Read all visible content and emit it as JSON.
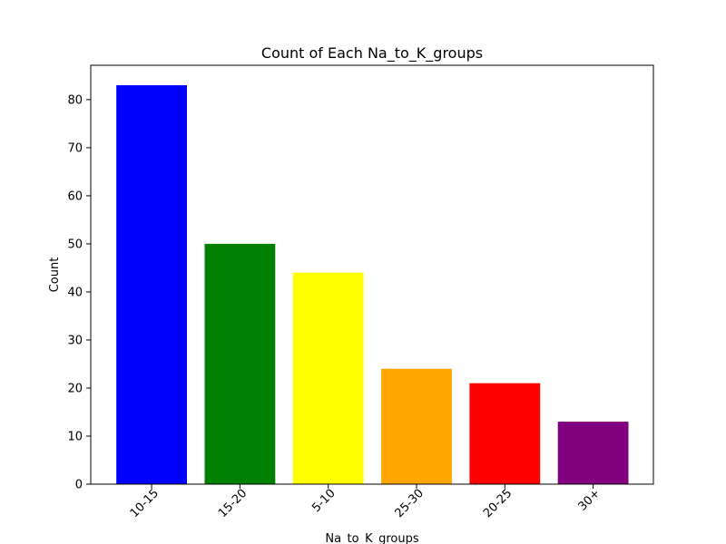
{
  "chart_data": {
    "type": "bar",
    "title": "Count of Each Na_to_K_groups",
    "xlabel": "Na_to_K_groups",
    "ylabel": "Count",
    "categories": [
      "10-15",
      "15-20",
      "5-10",
      "25-30",
      "20-25",
      "30+"
    ],
    "values": [
      83,
      50,
      44,
      24,
      21,
      13
    ],
    "colors": [
      "#0000ff",
      "#008000",
      "#ffff00",
      "#ffa500",
      "#ff0000",
      "#800080"
    ],
    "ylim": [
      0,
      87.15
    ],
    "yticks": [
      0,
      10,
      20,
      30,
      40,
      50,
      60,
      70,
      80
    ],
    "grid": false,
    "legend": "none"
  }
}
